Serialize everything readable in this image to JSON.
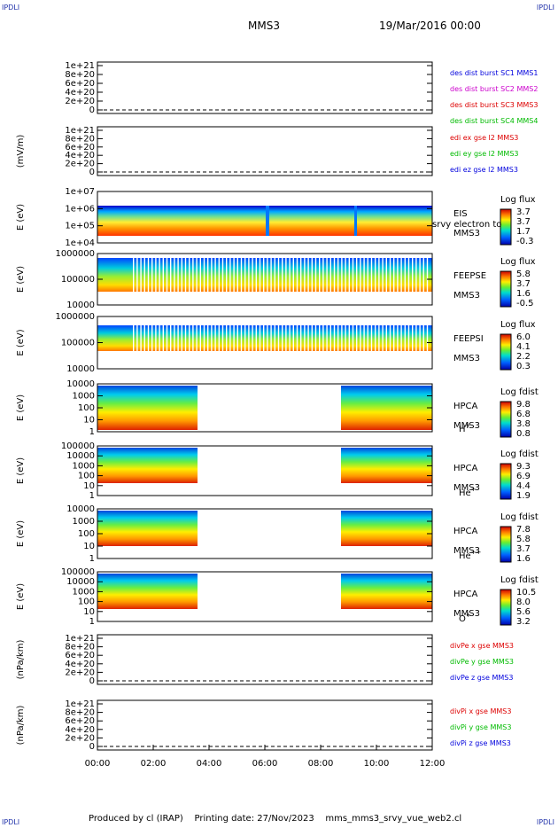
{
  "corners": {
    "tl": "IPDLI",
    "tr": "IPDLI",
    "bl": "IPDLI",
    "br": "IPDLI"
  },
  "header": {
    "title": "MMS3",
    "date": "19/Mar/2016 00:00"
  },
  "footer": {
    "produced": "Produced by cl (IRAP)",
    "printed": "Printing date: 27/Nov/2023",
    "script": "mms_mms3_srvy_vue_web2.cl"
  },
  "colors": {
    "blue": "#0000dd",
    "red": "#dd0000",
    "green": "#00bb00",
    "magenta": "#cc00cc"
  },
  "chart_data": [
    {
      "type": "line",
      "panel": "des-dist",
      "ylabel": "",
      "yticks": [
        "0",
        "2e+20",
        "4e+20",
        "6e+20",
        "8e+20",
        "1e+21"
      ],
      "legend": [
        {
          "text": "des dist burst SC1 MMS1",
          "color": "#0000dd"
        },
        {
          "text": "des dist burst SC2 MMS2",
          "color": "#cc00cc"
        },
        {
          "text": "des dist burst SC3 MMS3",
          "color": "#dd0000"
        },
        {
          "text": "des dist burst SC4 MMS4",
          "color": "#00bb00"
        }
      ]
    },
    {
      "type": "line",
      "panel": "edi-e",
      "ylabel": "(mV/m)",
      "yticks": [
        "0",
        "2e+20",
        "4e+20",
        "6e+20",
        "8e+20",
        "1e+21"
      ],
      "legend": [
        {
          "text": "edi ex gse l2 MMS3",
          "color": "#dd0000"
        },
        {
          "text": "edi ey gse l2 MMS3",
          "color": "#00bb00"
        },
        {
          "text": "edi ez gse l2 MMS3",
          "color": "#0000dd"
        }
      ]
    },
    {
      "type": "heatmap",
      "panel": "eis",
      "ylabel": "E (eV)",
      "yticks": [
        "1e+04",
        "1e+05",
        "1e+06",
        "1e+07"
      ],
      "labels": [
        "EIS",
        "MMS3"
      ],
      "overlay": "srvy electron to",
      "cbar_title": "Log flux",
      "cbar_ticks": [
        "3.7",
        "3.7",
        "1.7",
        "-0.3"
      ]
    },
    {
      "type": "heatmap",
      "panel": "feepse",
      "ylabel": "E (eV)",
      "yticks": [
        "10000",
        "100000",
        "1000000"
      ],
      "labels": [
        "FEEPSE",
        "MMS3"
      ],
      "cbar_title": "Log flux",
      "cbar_ticks": [
        "5.8",
        "3.7",
        "1.6",
        "-0.5"
      ]
    },
    {
      "type": "heatmap",
      "panel": "feepsi",
      "ylabel": "E (eV)",
      "yticks": [
        "10000",
        "100000",
        "1000000"
      ],
      "labels": [
        "FEEPSI",
        "MMS3"
      ],
      "cbar_title": "Log flux",
      "cbar_ticks": [
        "6.0",
        "4.1",
        "2.2",
        "0.3"
      ]
    },
    {
      "type": "heatmap",
      "panel": "hpca-h",
      "ylabel": "E (eV)",
      "yticks": [
        "1",
        "10",
        "100",
        "1000",
        "10000"
      ],
      "labels": [
        "HPCA",
        "MMS3"
      ],
      "species": "H",
      "charge": "+",
      "cbar_title": "Log fdist",
      "cbar_ticks": [
        "9.8",
        "6.8",
        "3.8",
        "0.8"
      ]
    },
    {
      "type": "heatmap",
      "panel": "hpca-he",
      "ylabel": "E (eV)",
      "yticks": [
        "1",
        "10",
        "100",
        "1000",
        "10000",
        "100000"
      ],
      "labels": [
        "HPCA",
        "MMS3"
      ],
      "species": "He",
      "charge": "+",
      "cbar_title": "Log fdist",
      "cbar_ticks": [
        "9.3",
        "6.9",
        "4.4",
        "1.9"
      ]
    },
    {
      "type": "heatmap",
      "panel": "hpca-hepp",
      "ylabel": "E (eV)",
      "yticks": [
        "1",
        "10",
        "100",
        "1000",
        "10000"
      ],
      "labels": [
        "HPCA",
        "MMS3"
      ],
      "species": "He",
      "charge": "++",
      "cbar_title": "Log fdist",
      "cbar_ticks": [
        "7.8",
        "5.8",
        "3.7",
        "1.6"
      ]
    },
    {
      "type": "heatmap",
      "panel": "hpca-o",
      "ylabel": "E (eV)",
      "yticks": [
        "1",
        "10",
        "100",
        "1000",
        "10000",
        "100000"
      ],
      "labels": [
        "HPCA",
        "MMS3"
      ],
      "species": "O",
      "charge": "+",
      "cbar_title": "Log fdist",
      "cbar_ticks": [
        "10.5",
        "8.0",
        "5.6",
        "3.2"
      ]
    },
    {
      "type": "line",
      "panel": "divpe",
      "ylabel": "(nPa/km)",
      "yticks": [
        "0",
        "2e+20",
        "4e+20",
        "6e+20",
        "8e+20",
        "1e+21"
      ],
      "legend": [
        {
          "text": "divPe x gse MMS3",
          "color": "#dd0000"
        },
        {
          "text": "divPe y gse MMS3",
          "color": "#00bb00"
        },
        {
          "text": "divPe z gse MMS3",
          "color": "#0000dd"
        }
      ]
    },
    {
      "type": "line",
      "panel": "divpi",
      "ylabel": "(nPa/km)",
      "yticks": [
        "0",
        "2e+20",
        "4e+20",
        "6e+20",
        "8e+20",
        "1e+21"
      ],
      "legend": [
        {
          "text": "divPi x gse MMS3",
          "color": "#dd0000"
        },
        {
          "text": "divPi y gse MMS3",
          "color": "#00bb00"
        },
        {
          "text": "divPi z gse MMS3",
          "color": "#0000dd"
        }
      ]
    }
  ],
  "xaxis": {
    "ticks": [
      "00:00",
      "02:00",
      "04:00",
      "06:00",
      "08:00",
      "10:00",
      "12:00"
    ]
  }
}
